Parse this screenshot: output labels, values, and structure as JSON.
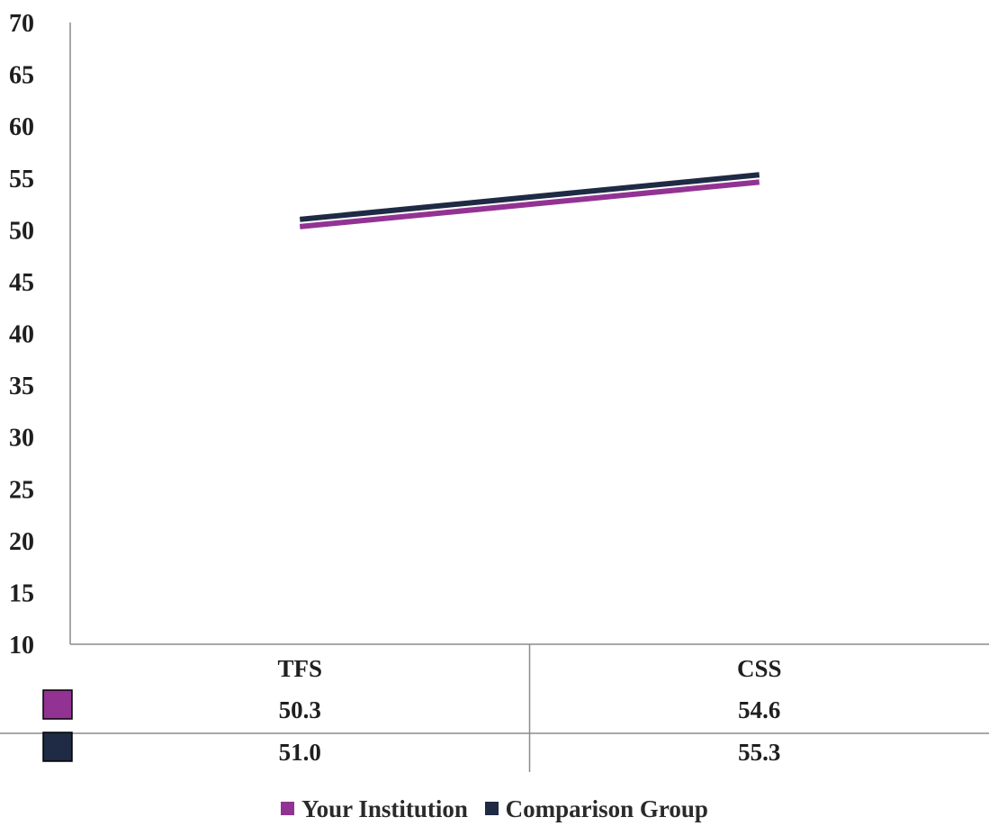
{
  "chart_data": {
    "type": "line",
    "categories": [
      "TFS",
      "CSS"
    ],
    "series": [
      {
        "name": "Your Institution",
        "values": [
          50.3,
          54.6
        ],
        "labels": [
          "50.3",
          "54.6"
        ],
        "color": "#923393"
      },
      {
        "name": "Comparison Group",
        "values": [
          51.0,
          55.3
        ],
        "labels": [
          "51.0",
          "55.3"
        ],
        "color": "#1f2a44"
      }
    ],
    "ylim": [
      10,
      70
    ],
    "yticks": [
      "70",
      "65",
      "60",
      "55",
      "50",
      "45",
      "40",
      "35",
      "30",
      "25",
      "20",
      "15",
      "10"
    ],
    "grid": false,
    "data_table": true,
    "legend": "bottom"
  }
}
